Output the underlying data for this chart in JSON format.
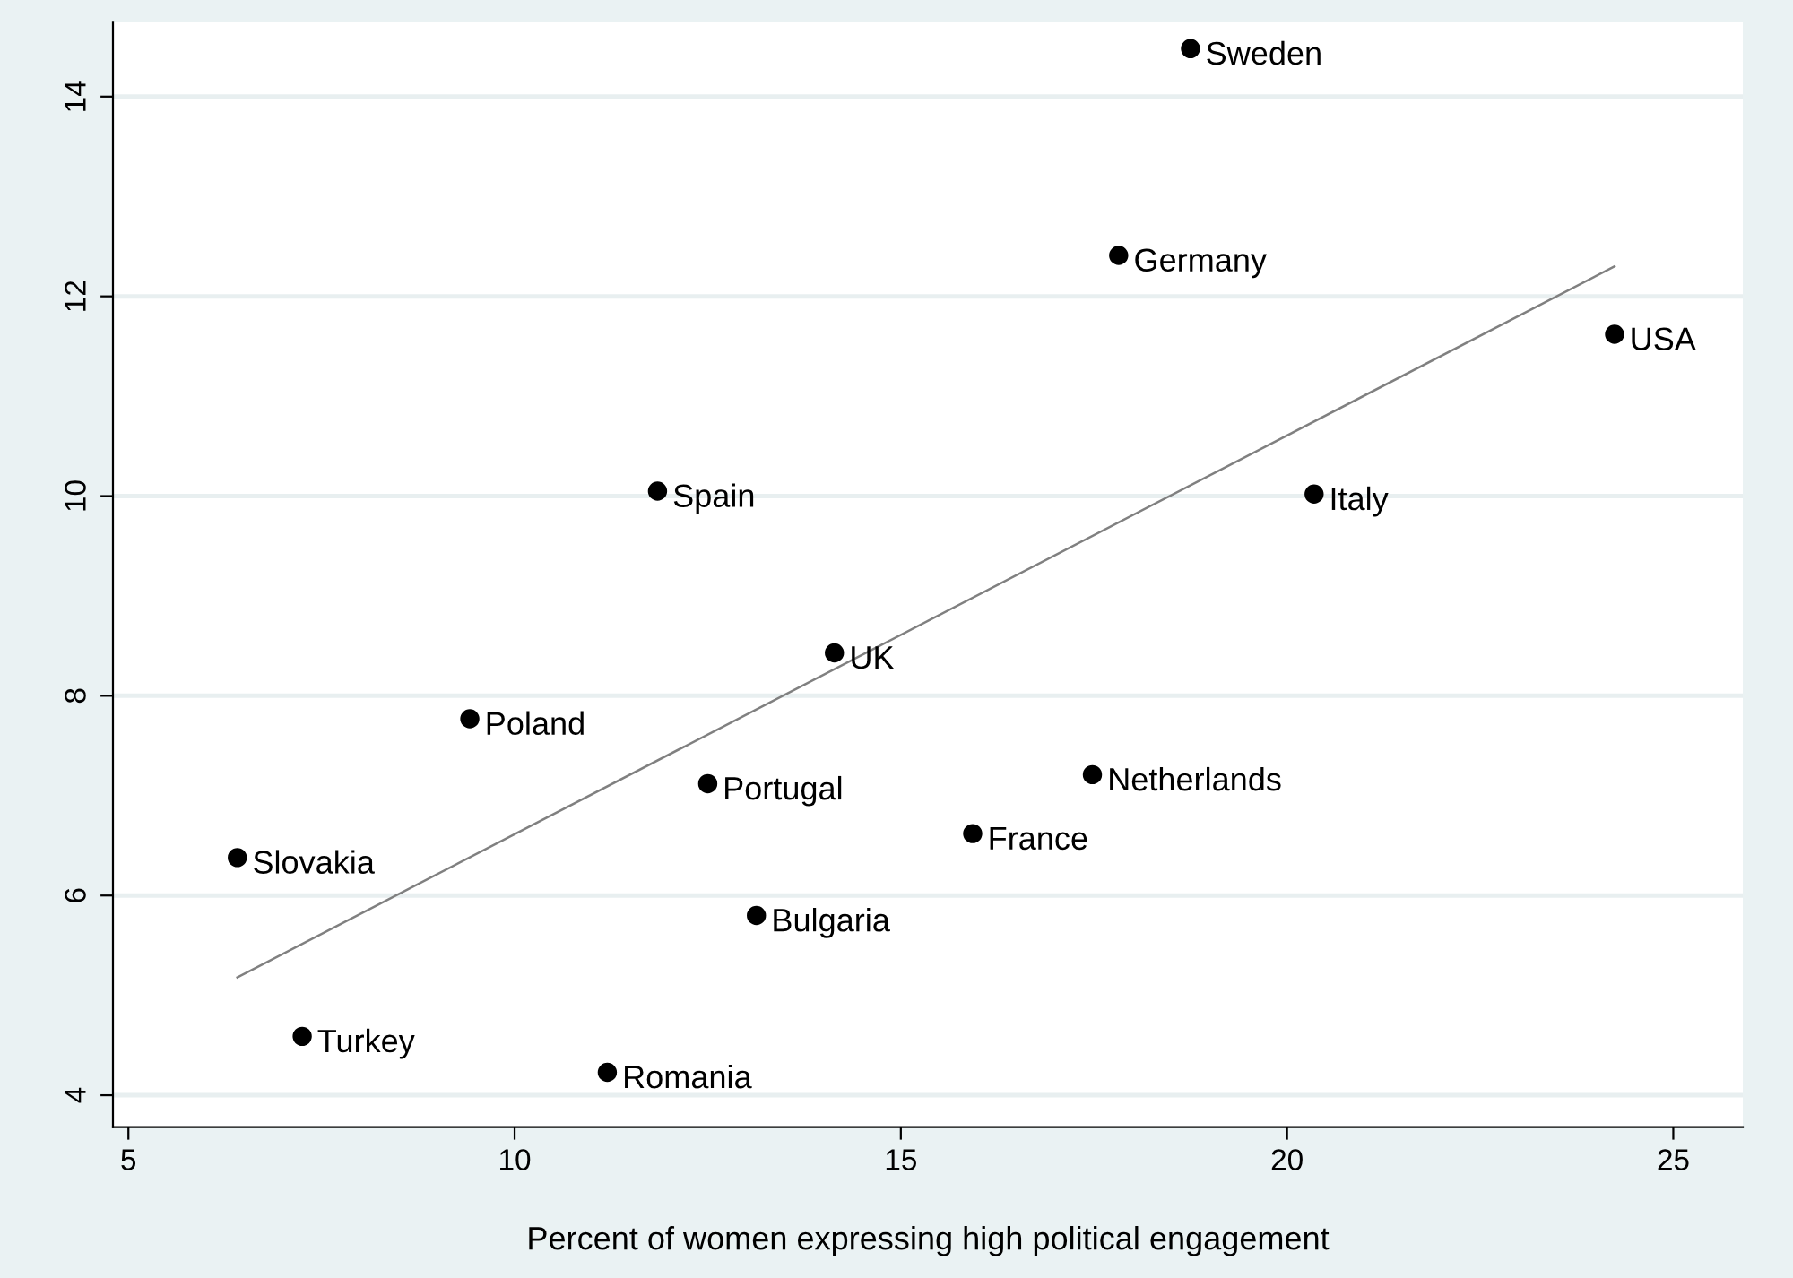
{
  "chart_data": {
    "type": "scatter",
    "xlabel": "Percent of women expressing high political engagement",
    "xlim": [
      4.8,
      25.9
    ],
    "xticks": [
      5,
      10,
      15,
      20,
      25
    ],
    "ylim": [
      3.68,
      14.75
    ],
    "yticks": [
      4,
      6,
      8,
      10,
      12,
      14
    ],
    "grid": "y",
    "legend": false,
    "series": [
      {
        "marker": "circle",
        "color": "#000000",
        "x": [
          18.75,
          17.82,
          24.24,
          20.35,
          11.85,
          14.14,
          9.42,
          12.5,
          17.48,
          15.93,
          6.41,
          13.13,
          7.25,
          11.2
        ],
        "values": [
          14.48,
          12.41,
          11.62,
          10.02,
          10.05,
          8.43,
          7.77,
          7.12,
          7.21,
          6.62,
          6.38,
          5.8,
          4.59,
          4.23
        ]
      },
      {
        "type": "line",
        "marker": "none",
        "color": "#808080",
        "line_style": "solid",
        "x": [
          6.41,
          24.24
        ],
        "values": [
          5.18,
          12.3
        ]
      }
    ],
    "annotations": [
      {
        "text": "Sweden",
        "x": 18.75,
        "y": 14.48
      },
      {
        "text": "Germany",
        "x": 17.82,
        "y": 12.41
      },
      {
        "text": "USA",
        "x": 24.24,
        "y": 11.62
      },
      {
        "text": "Italy",
        "x": 20.35,
        "y": 10.02
      },
      {
        "text": "Spain",
        "x": 11.85,
        "y": 10.05
      },
      {
        "text": "UK",
        "x": 14.14,
        "y": 8.43
      },
      {
        "text": "Poland",
        "x": 9.42,
        "y": 7.77
      },
      {
        "text": "Portugal",
        "x": 12.5,
        "y": 7.12
      },
      {
        "text": "Netherlands",
        "x": 17.48,
        "y": 7.21
      },
      {
        "text": "France",
        "x": 15.93,
        "y": 6.62
      },
      {
        "text": "Slovakia",
        "x": 6.41,
        "y": 6.38
      },
      {
        "text": "Bulgaria",
        "x": 13.13,
        "y": 5.8
      },
      {
        "text": "Turkey",
        "x": 7.25,
        "y": 4.59
      },
      {
        "text": "Romania",
        "x": 11.2,
        "y": 4.23
      }
    ]
  }
}
